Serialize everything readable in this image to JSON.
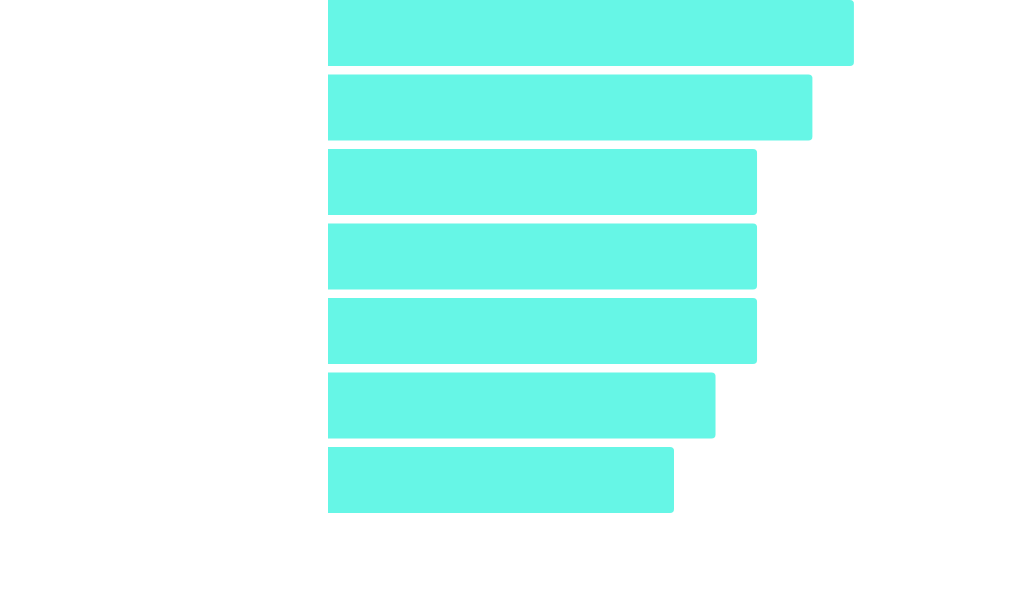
{
  "chart_data": {
    "type": "barh",
    "values": [
      38,
      35,
      31,
      31,
      31,
      28,
      25
    ],
    "color": "#66f6e6",
    "xlim": [
      0,
      50
    ]
  }
}
